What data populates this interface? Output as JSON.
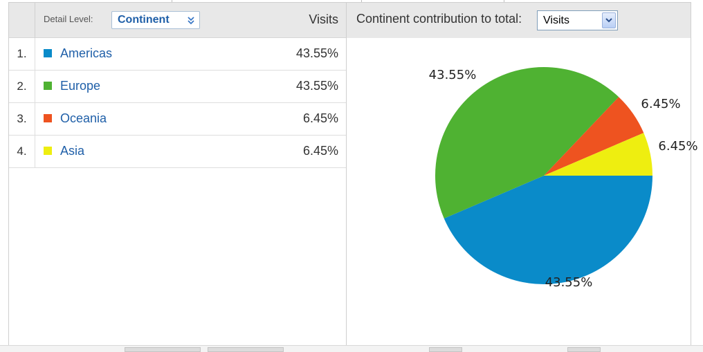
{
  "left_header": {
    "detail_level_label": "Detail Level:",
    "detail_level_value": "Continent",
    "visits_header": "Visits"
  },
  "right_header": {
    "contribution_label": "Continent contribution to total:",
    "metric_value": "Visits"
  },
  "rows": [
    {
      "num": "1.",
      "name": "Americas",
      "pct": "43.55%",
      "color": "#0a8bc9"
    },
    {
      "num": "2.",
      "name": "Europe",
      "pct": "43.55%",
      "color": "#4fb232"
    },
    {
      "num": "3.",
      "name": "Oceania",
      "pct": "6.45%",
      "color": "#ee5320"
    },
    {
      "num": "4.",
      "name": "Asia",
      "pct": "6.45%",
      "color": "#eeee10"
    }
  ],
  "chart_data": {
    "type": "pie",
    "title": "",
    "categories": [
      "Americas",
      "Europe",
      "Oceania",
      "Asia"
    ],
    "values": [
      43.55,
      43.55,
      6.45,
      6.45
    ],
    "labels": [
      "43.55%",
      "43.55%",
      "6.45%",
      "6.45%"
    ],
    "colors": [
      "#0a8bc9",
      "#4fb232",
      "#ee5320",
      "#eeee10"
    ]
  }
}
